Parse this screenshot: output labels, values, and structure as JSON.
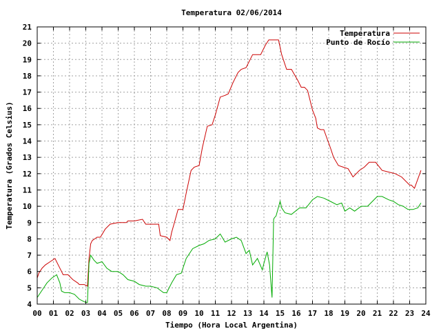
{
  "chart_data": {
    "type": "line",
    "title": "Temperatura 02/06/2014",
    "xlabel": "Tiempo (Hora Local Argentina)",
    "ylabel": "Temperatura (Grados Celsius)",
    "xlim": [
      0,
      24
    ],
    "ylim": [
      4,
      21
    ],
    "x_ticks": [
      "00",
      "01",
      "02",
      "03",
      "04",
      "05",
      "06",
      "07",
      "08",
      "09",
      "10",
      "11",
      "12",
      "13",
      "14",
      "15",
      "16",
      "17",
      "18",
      "19",
      "20",
      "21",
      "22",
      "23",
      "24"
    ],
    "y_ticks": [
      "4",
      "5",
      "6",
      "7",
      "8",
      "9",
      "10",
      "11",
      "12",
      "13",
      "14",
      "15",
      "16",
      "17",
      "18",
      "19",
      "20",
      "21"
    ],
    "grid": true,
    "legend_position": "top-right",
    "series": [
      {
        "name": "Temperatura",
        "color": "#cc0000",
        "x": [
          0,
          0.1,
          0.3,
          0.5,
          0.8,
          1.1,
          1.3,
          1.5,
          1.6,
          1.9,
          2.2,
          2.5,
          2.6,
          2.9,
          3.1,
          3.2,
          3.3,
          3.4,
          3.7,
          3.9,
          4.2,
          4.5,
          5.0,
          5.5,
          5.6,
          6.0,
          6.5,
          6.7,
          7.0,
          7.5,
          7.6,
          8.0,
          8.2,
          8.3,
          8.5,
          8.7,
          9.0,
          9.2,
          9.5,
          9.7,
          10.0,
          10.2,
          10.5,
          10.8,
          11.0,
          11.3,
          11.6,
          11.8,
          12.1,
          12.4,
          12.6,
          12.9,
          13.3,
          13.6,
          13.8,
          14.1,
          14.3,
          14.5,
          14.6,
          14.9,
          15.1,
          15.4,
          15.6,
          15.7,
          16.1,
          16.3,
          16.5,
          16.7,
          17.0,
          17.2,
          17.3,
          17.5,
          17.7,
          18.1,
          18.3,
          18.6,
          18.9,
          19.2,
          19.5,
          19.9,
          20.2,
          20.5,
          20.9,
          21.3,
          21.7,
          22.1,
          22.5,
          23.0,
          23.1,
          23.3,
          23.7
        ],
        "values": [
          5.6,
          5.9,
          6.2,
          6.4,
          6.6,
          6.8,
          6.4,
          6.0,
          5.8,
          5.8,
          5.5,
          5.3,
          5.2,
          5.2,
          5.1,
          6.8,
          7.7,
          7.9,
          8.1,
          8.1,
          8.6,
          8.9,
          9.0,
          9.0,
          9.1,
          9.1,
          9.2,
          8.9,
          8.9,
          8.9,
          8.2,
          8.1,
          7.9,
          8.4,
          9.1,
          9.8,
          9.8,
          10.8,
          12.2,
          12.4,
          12.5,
          13.6,
          14.9,
          15.0,
          15.6,
          16.7,
          16.8,
          16.9,
          17.6,
          18.2,
          18.4,
          18.5,
          19.3,
          19.3,
          19.3,
          19.9,
          20.2,
          20.2,
          20.2,
          20.2,
          19.3,
          18.4,
          18.4,
          18.4,
          17.7,
          17.3,
          17.3,
          17.1,
          15.9,
          15.4,
          14.8,
          14.7,
          14.7,
          13.6,
          13.0,
          12.5,
          12.4,
          12.3,
          11.8,
          12.2,
          12.4,
          12.7,
          12.7,
          12.2,
          12.1,
          12.0,
          11.8,
          11.3,
          11.3,
          11.1,
          12.2
        ]
      },
      {
        "name": "Punto de Rocío",
        "color": "#00aa00",
        "x": [
          0,
          0.2,
          0.4,
          0.6,
          0.9,
          1.2,
          1.4,
          1.5,
          1.7,
          2.0,
          2.3,
          2.6,
          2.8,
          3.0,
          3.1,
          3.2,
          3.3,
          3.5,
          3.7,
          4.0,
          4.3,
          4.6,
          5.0,
          5.3,
          5.6,
          6.0,
          6.3,
          6.7,
          7.0,
          7.4,
          7.8,
          8.0,
          8.3,
          8.6,
          8.9,
          9.2,
          9.6,
          10.0,
          10.3,
          10.6,
          11.0,
          11.3,
          11.6,
          12.0,
          12.3,
          12.6,
          12.9,
          13.1,
          13.3,
          13.6,
          13.9,
          14.0,
          14.2,
          14.35,
          14.5,
          14.6,
          14.65,
          14.75,
          15.0,
          15.1,
          15.3,
          15.7,
          16.2,
          16.6,
          17.0,
          17.3,
          17.7,
          18.1,
          18.5,
          18.8,
          19.0,
          19.3,
          19.6,
          20.0,
          20.4,
          20.7,
          21.0,
          21.3,
          21.7,
          22.0,
          22.3,
          22.6,
          22.9,
          23.2,
          23.5,
          23.7
        ],
        "values": [
          4.4,
          4.7,
          5.0,
          5.3,
          5.6,
          5.8,
          5.3,
          4.8,
          4.7,
          4.7,
          4.6,
          4.3,
          4.2,
          4.1,
          4.1,
          6.5,
          7.0,
          6.7,
          6.5,
          6.6,
          6.2,
          6.0,
          6.0,
          5.8,
          5.5,
          5.4,
          5.2,
          5.1,
          5.1,
          5.0,
          4.7,
          4.7,
          5.3,
          5.8,
          5.9,
          6.8,
          7.4,
          7.6,
          7.7,
          7.9,
          8.0,
          8.3,
          7.8,
          8.0,
          8.1,
          7.9,
          7.1,
          7.3,
          6.4,
          6.8,
          6.1,
          6.5,
          7.2,
          6.4,
          4.4,
          9.2,
          9.3,
          9.4,
          10.3,
          9.9,
          9.6,
          9.5,
          9.9,
          9.9,
          10.4,
          10.6,
          10.5,
          10.3,
          10.1,
          10.2,
          9.7,
          9.9,
          9.7,
          10.0,
          10.0,
          10.3,
          10.6,
          10.6,
          10.4,
          10.3,
          10.1,
          10.0,
          9.8,
          9.8,
          9.9,
          10.2
        ]
      }
    ]
  }
}
